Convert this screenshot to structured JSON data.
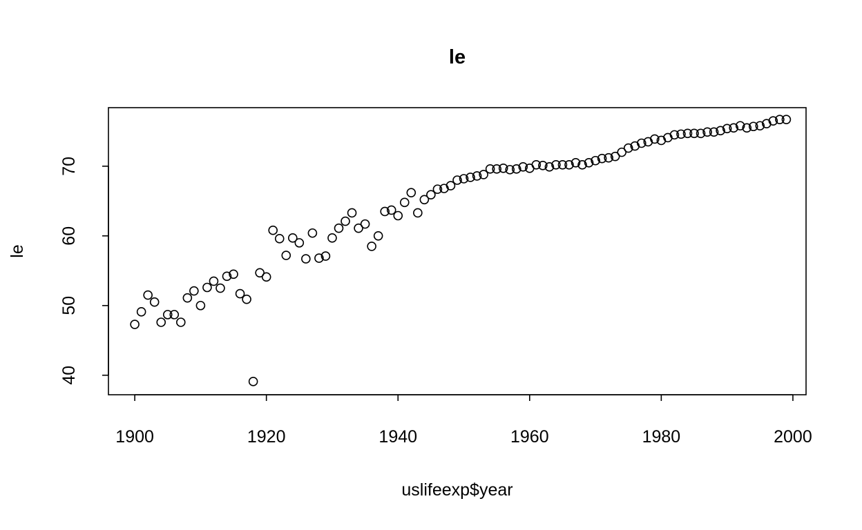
{
  "chart_data": {
    "type": "scatter",
    "title": "le",
    "xlabel": "uslifeexp$year",
    "ylabel": "le",
    "xlim": [
      1896,
      2002
    ],
    "ylim": [
      37.2,
      78.4
    ],
    "xticks": [
      1900,
      1920,
      1940,
      1960,
      1980,
      2000
    ],
    "yticks": [
      40,
      50,
      60,
      70
    ],
    "grid": false,
    "series": [
      {
        "x": [
          1900,
          1901,
          1902,
          1903,
          1904,
          1905,
          1906,
          1907,
          1908,
          1909,
          1910,
          1911,
          1912,
          1913,
          1914,
          1915,
          1916,
          1917,
          1918,
          1919,
          1920,
          1921,
          1922,
          1923,
          1924,
          1925,
          1926,
          1927,
          1928,
          1929,
          1930,
          1931,
          1932,
          1933,
          1934,
          1935,
          1936,
          1937,
          1938,
          1939,
          1940,
          1941,
          1942,
          1943,
          1944,
          1945,
          1946,
          1947,
          1948,
          1949,
          1950,
          1951,
          1952,
          1953,
          1954,
          1955,
          1956,
          1957,
          1958,
          1959,
          1960,
          1961,
          1962,
          1963,
          1964,
          1965,
          1966,
          1967,
          1968,
          1969,
          1970,
          1971,
          1972,
          1973,
          1974,
          1975,
          1976,
          1977,
          1978,
          1979,
          1980,
          1981,
          1982,
          1983,
          1984,
          1985,
          1986,
          1987,
          1988,
          1989,
          1990,
          1991,
          1992,
          1993,
          1994,
          1995,
          1996,
          1997,
          1998,
          1999
        ],
        "y": [
          47.3,
          49.1,
          51.5,
          50.5,
          47.6,
          48.7,
          48.7,
          47.6,
          51.1,
          52.1,
          50.0,
          52.6,
          53.5,
          52.5,
          54.2,
          54.5,
          51.7,
          50.9,
          39.1,
          54.7,
          54.1,
          60.8,
          59.6,
          57.2,
          59.7,
          59.0,
          56.7,
          60.4,
          56.8,
          57.1,
          59.7,
          61.1,
          62.1,
          63.3,
          61.1,
          61.7,
          58.5,
          60.0,
          63.5,
          63.7,
          62.9,
          64.8,
          66.2,
          63.3,
          65.2,
          65.9,
          66.7,
          66.8,
          67.2,
          68.0,
          68.2,
          68.4,
          68.6,
          68.8,
          69.6,
          69.6,
          69.7,
          69.5,
          69.6,
          69.9,
          69.7,
          70.2,
          70.1,
          69.9,
          70.2,
          70.2,
          70.2,
          70.5,
          70.2,
          70.5,
          70.8,
          71.1,
          71.2,
          71.4,
          72.0,
          72.6,
          72.9,
          73.3,
          73.5,
          73.9,
          73.7,
          74.1,
          74.5,
          74.6,
          74.7,
          74.7,
          74.7,
          74.9,
          74.9,
          75.1,
          75.4,
          75.5,
          75.8,
          75.5,
          75.7,
          75.8,
          76.1,
          76.5,
          76.7,
          76.7
        ]
      }
    ]
  }
}
